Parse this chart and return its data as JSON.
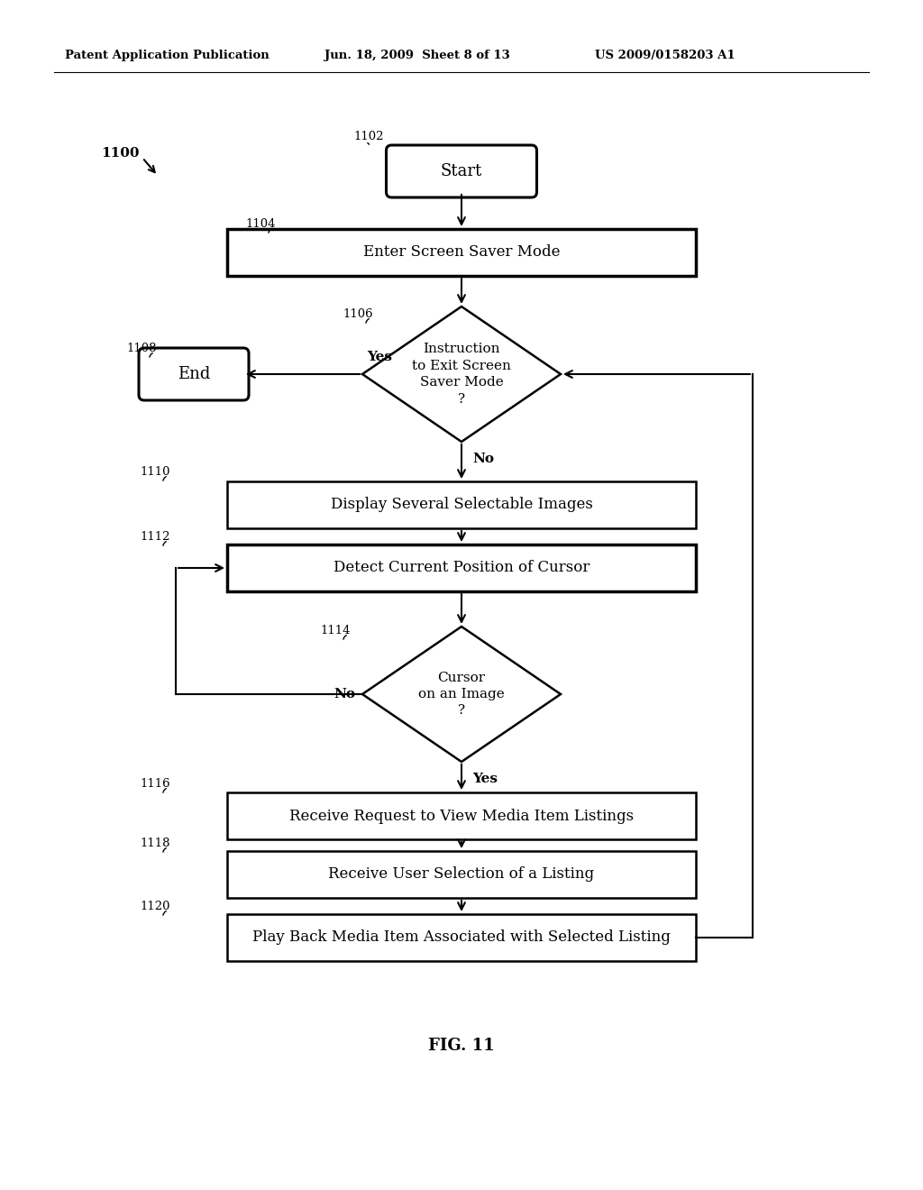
{
  "title_left": "Patent Application Publication",
  "title_mid": "Jun. 18, 2009  Sheet 8 of 13",
  "title_right": "US 2009/0158203 A1",
  "fig_label": "FIG. 11",
  "bg_color": "#ffffff",
  "figw": 10.24,
  "figh": 13.2,
  "dpi": 100
}
